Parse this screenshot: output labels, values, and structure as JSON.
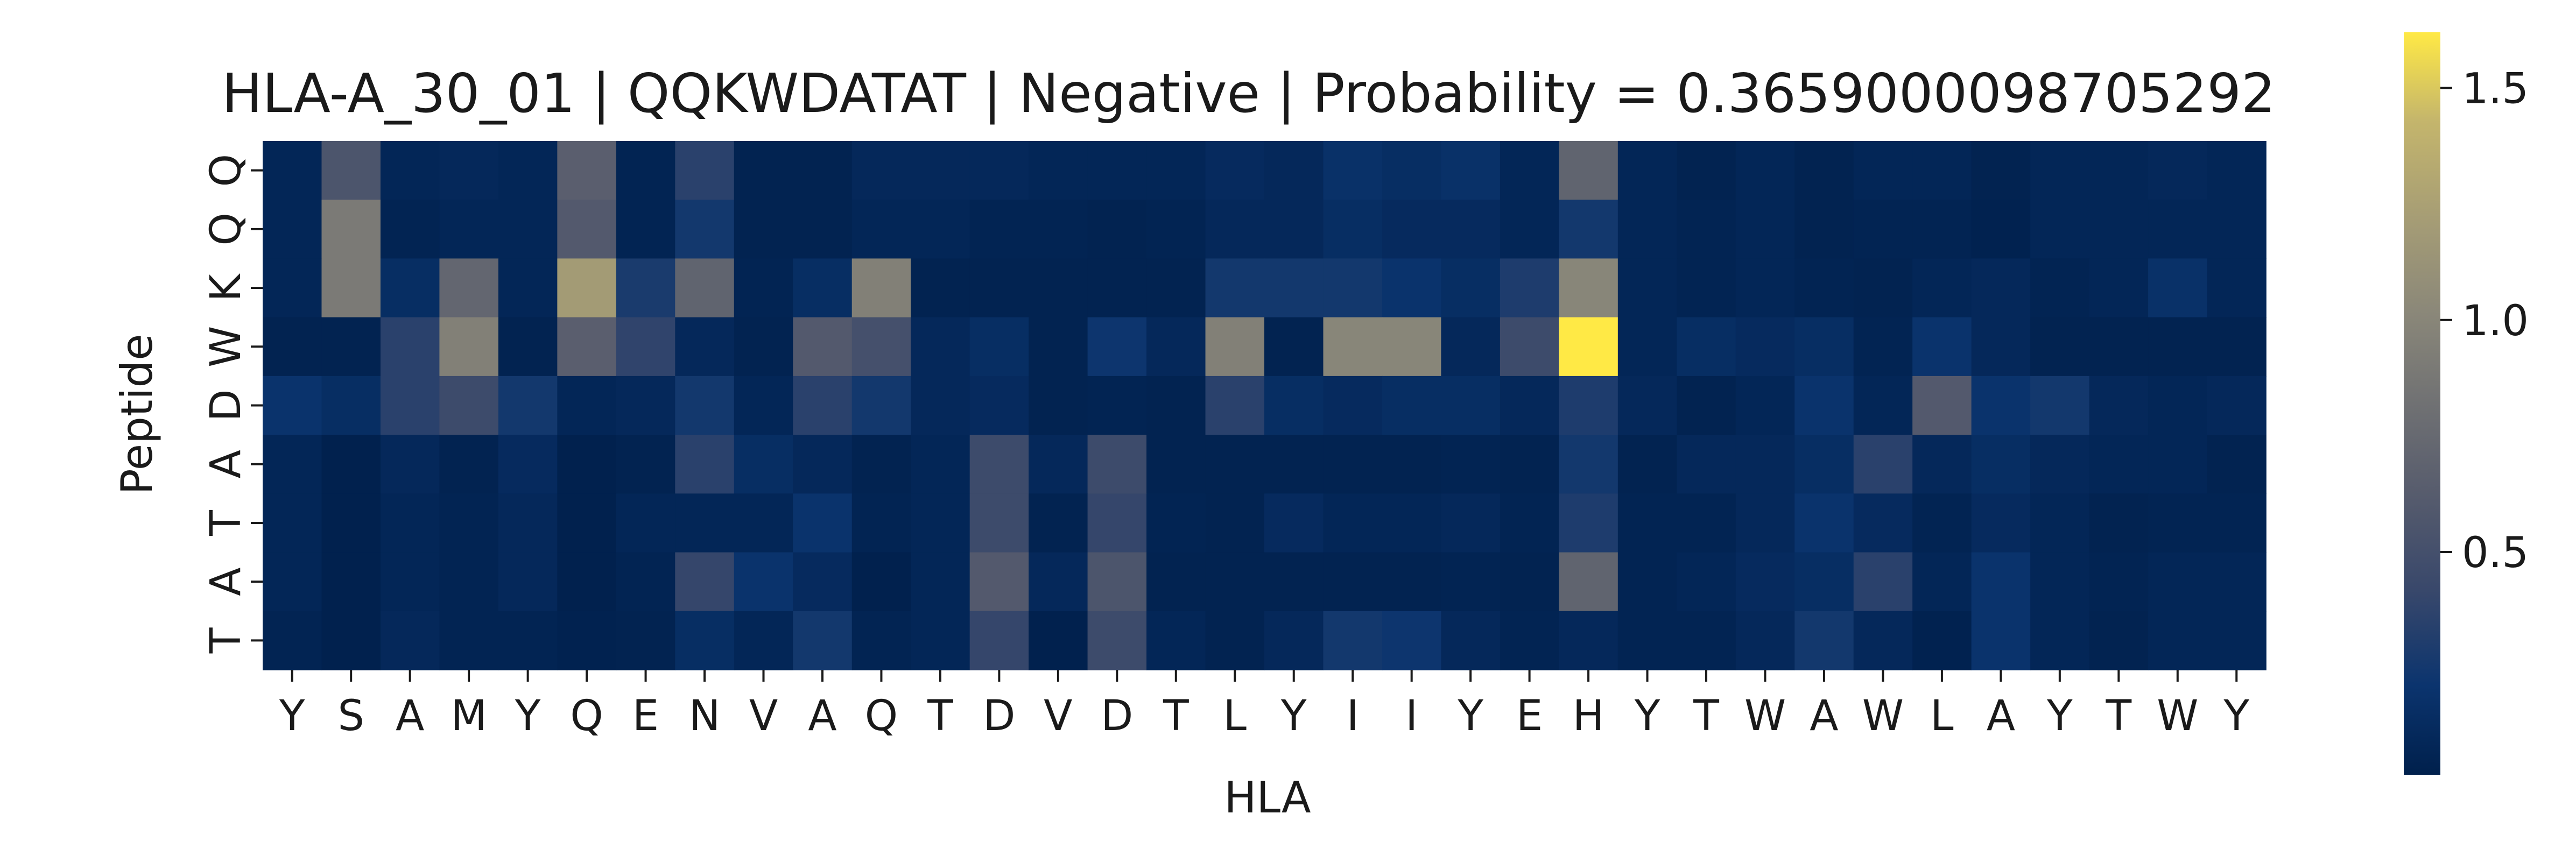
{
  "chart_data": {
    "type": "heatmap",
    "title": "HLA-A_30_01 | QQKWDATAT | Negative | Probability = 0.3659000098705292",
    "xlabel": "HLA",
    "ylabel": "Peptide",
    "x_tick_labels": [
      "Y",
      "S",
      "A",
      "M",
      "Y",
      "Q",
      "E",
      "N",
      "V",
      "A",
      "Q",
      "T",
      "D",
      "V",
      "D",
      "T",
      "L",
      "Y",
      "I",
      "I",
      "Y",
      "E",
      "H",
      "Y",
      "T",
      "W",
      "A",
      "W",
      "L",
      "A",
      "Y",
      "T",
      "W",
      "Y"
    ],
    "y_tick_labels": [
      "Q",
      "Q",
      "K",
      "W",
      "D",
      "A",
      "T",
      "A",
      "T"
    ],
    "colormap": "cividis",
    "colors": {
      "low": "#00204c",
      "mid": "#7d7c78",
      "high": "#ffe945"
    },
    "value_range": [
      0.02,
      1.62
    ],
    "colorbar_ticks": [
      0.5,
      1.0,
      1.5
    ],
    "colorbar_tick_labels": [
      "0.5",
      "1.0",
      "1.5"
    ],
    "grid": false,
    "values": [
      [
        0.08,
        0.55,
        0.08,
        0.1,
        0.08,
        0.65,
        0.06,
        0.35,
        0.05,
        0.05,
        0.1,
        0.1,
        0.1,
        0.08,
        0.08,
        0.08,
        0.12,
        0.1,
        0.18,
        0.15,
        0.18,
        0.08,
        0.7,
        0.08,
        0.05,
        0.08,
        0.05,
        0.08,
        0.08,
        0.05,
        0.08,
        0.08,
        0.1,
        0.08
      ],
      [
        0.08,
        0.9,
        0.06,
        0.08,
        0.08,
        0.6,
        0.06,
        0.25,
        0.05,
        0.05,
        0.08,
        0.08,
        0.06,
        0.06,
        0.05,
        0.06,
        0.1,
        0.1,
        0.15,
        0.12,
        0.12,
        0.08,
        0.25,
        0.08,
        0.06,
        0.08,
        0.05,
        0.06,
        0.06,
        0.04,
        0.08,
        0.08,
        0.08,
        0.08
      ],
      [
        0.08,
        0.9,
        0.15,
        0.72,
        0.08,
        1.2,
        0.28,
        0.7,
        0.06,
        0.15,
        0.95,
        0.05,
        0.05,
        0.05,
        0.05,
        0.05,
        0.25,
        0.25,
        0.25,
        0.2,
        0.15,
        0.3,
        1.0,
        0.08,
        0.06,
        0.08,
        0.06,
        0.05,
        0.08,
        0.1,
        0.06,
        0.08,
        0.18,
        0.08
      ],
      [
        0.05,
        0.05,
        0.35,
        0.95,
        0.05,
        0.65,
        0.38,
        0.1,
        0.05,
        0.6,
        0.5,
        0.1,
        0.15,
        0.05,
        0.22,
        0.1,
        0.95,
        0.05,
        1.0,
        1.0,
        0.1,
        0.45,
        1.62,
        0.08,
        0.15,
        0.12,
        0.15,
        0.06,
        0.2,
        0.1,
        0.05,
        0.05,
        0.05,
        0.05
      ],
      [
        0.2,
        0.15,
        0.35,
        0.45,
        0.25,
        0.08,
        0.1,
        0.25,
        0.08,
        0.35,
        0.25,
        0.1,
        0.12,
        0.05,
        0.06,
        0.05,
        0.35,
        0.15,
        0.12,
        0.15,
        0.15,
        0.1,
        0.3,
        0.1,
        0.05,
        0.08,
        0.2,
        0.08,
        0.6,
        0.2,
        0.25,
        0.1,
        0.08,
        0.1
      ],
      [
        0.08,
        0.03,
        0.1,
        0.05,
        0.12,
        0.03,
        0.05,
        0.35,
        0.15,
        0.1,
        0.05,
        0.08,
        0.45,
        0.1,
        0.45,
        0.05,
        0.05,
        0.05,
        0.05,
        0.05,
        0.06,
        0.05,
        0.25,
        0.05,
        0.1,
        0.1,
        0.15,
        0.35,
        0.1,
        0.15,
        0.1,
        0.08,
        0.08,
        0.05
      ],
      [
        0.08,
        0.03,
        0.08,
        0.06,
        0.1,
        0.03,
        0.08,
        0.08,
        0.08,
        0.2,
        0.06,
        0.08,
        0.45,
        0.05,
        0.4,
        0.06,
        0.05,
        0.12,
        0.08,
        0.08,
        0.1,
        0.06,
        0.3,
        0.06,
        0.06,
        0.1,
        0.2,
        0.12,
        0.06,
        0.12,
        0.08,
        0.05,
        0.06,
        0.06
      ],
      [
        0.08,
        0.03,
        0.08,
        0.06,
        0.1,
        0.03,
        0.06,
        0.4,
        0.2,
        0.12,
        0.03,
        0.08,
        0.6,
        0.1,
        0.55,
        0.05,
        0.05,
        0.05,
        0.05,
        0.05,
        0.06,
        0.05,
        0.7,
        0.06,
        0.08,
        0.12,
        0.15,
        0.35,
        0.08,
        0.2,
        0.08,
        0.06,
        0.08,
        0.08
      ],
      [
        0.06,
        0.03,
        0.1,
        0.06,
        0.06,
        0.04,
        0.05,
        0.15,
        0.08,
        0.25,
        0.06,
        0.08,
        0.4,
        0.03,
        0.45,
        0.08,
        0.05,
        0.1,
        0.25,
        0.22,
        0.1,
        0.06,
        0.1,
        0.06,
        0.06,
        0.1,
        0.25,
        0.1,
        0.04,
        0.2,
        0.08,
        0.05,
        0.08,
        0.08
      ]
    ]
  }
}
